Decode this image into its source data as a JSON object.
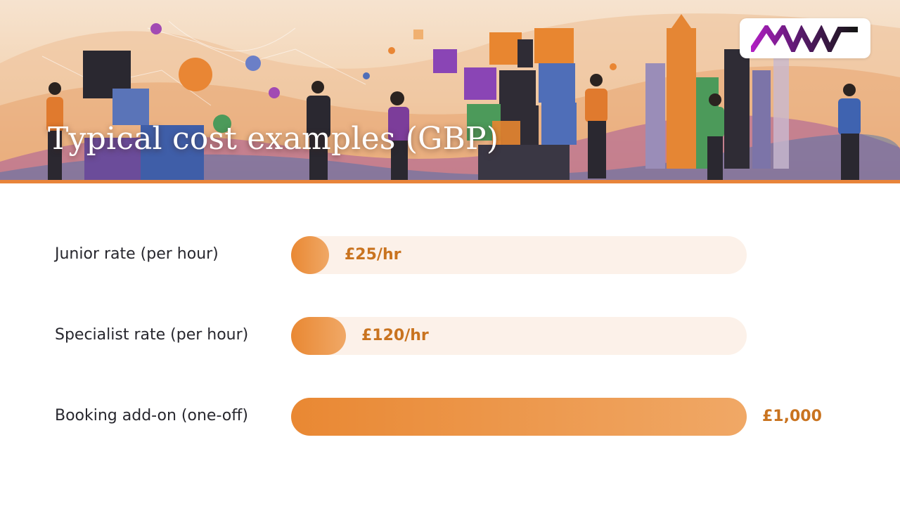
{
  "header": {
    "title": "Typical cost examples (GBP)",
    "logo_icon": "amw-logo"
  },
  "colors": {
    "accent": "#e8843a",
    "bar_fill_start": "#e98833",
    "bar_fill_end": "#f0a866",
    "track": "#fcf1e9",
    "value_text": "#c9731f",
    "label_text": "#27272e",
    "logo_gradient_start": "#b01fc2",
    "logo_dark": "#161616"
  },
  "chart_data": {
    "type": "bar",
    "orientation": "horizontal",
    "title": "Typical cost examples (GBP)",
    "unit": "GBP",
    "categories": [
      "Junior rate (per hour)",
      "Specialist rate (per hour)",
      "Booking add-on (one-off)"
    ],
    "values": [
      25,
      120,
      1000
    ],
    "value_labels": [
      "£25/hr",
      "£120/hr",
      "£1,000"
    ],
    "xlim": [
      0,
      1000
    ],
    "grid": false,
    "legend": "none"
  }
}
